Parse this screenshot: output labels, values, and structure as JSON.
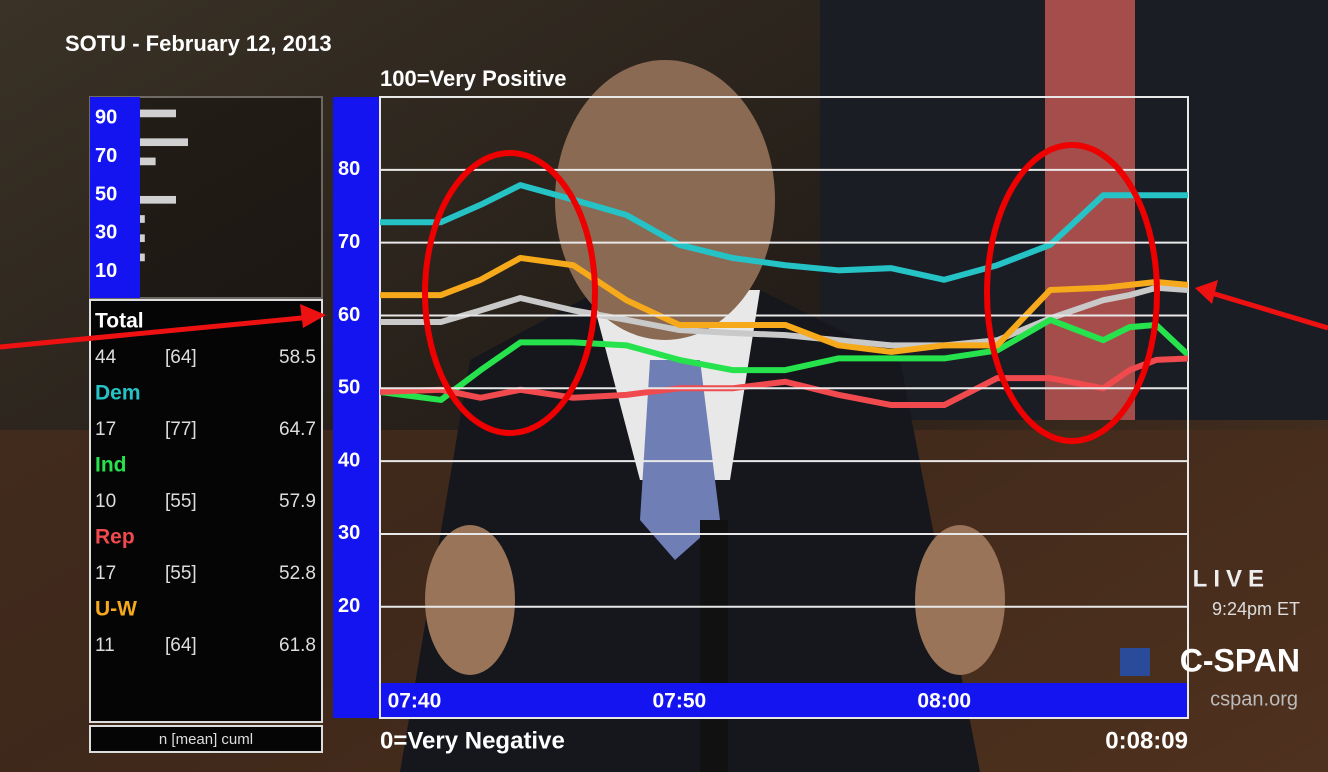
{
  "chart_data": [
    {
      "type": "line",
      "title": "SOTU - February 12, 2013",
      "top_label": "100=Very Positive",
      "bottom_label": "0=Very Negative",
      "timer": "0:08:09",
      "stats_header": "n [mean] cuml",
      "x": [
        38.7,
        41,
        42.5,
        44,
        46,
        48,
        50,
        52,
        54,
        56,
        58,
        60,
        62,
        64,
        66,
        67,
        68,
        69.2
      ],
      "xlim": [
        38.7,
        69.2
      ],
      "xticks": [
        {
          "value": 40,
          "label": "07:40"
        },
        {
          "value": 50,
          "label": "07:50"
        },
        {
          "value": 60,
          "label": "08:00"
        }
      ],
      "ylim": [
        5,
        90
      ],
      "yticks": [
        20,
        30,
        40,
        50,
        60,
        70,
        80
      ],
      "grid": true,
      "series": [
        {
          "name": "Total",
          "color": "#c9c9c9",
          "n": 44,
          "mean": "[64]",
          "cuml": 58.5,
          "values": [
            59.1,
            59.1,
            60.7,
            62.4,
            60.7,
            59.4,
            58.0,
            57.6,
            57.3,
            56.6,
            55.9,
            55.9,
            56.6,
            59.6,
            62.1,
            62.8,
            63.8,
            63.5
          ]
        },
        {
          "name": "Dem",
          "color": "#25c2c6",
          "n": 17,
          "mean": "[77]",
          "cuml": 64.7,
          "values": [
            72.8,
            72.8,
            75.2,
            77.9,
            75.9,
            73.8,
            69.7,
            67.9,
            66.9,
            66.2,
            66.5,
            64.9,
            66.9,
            69.7,
            76.5,
            76.5,
            76.5,
            76.5
          ]
        },
        {
          "name": "Ind",
          "color": "#26e24c",
          "n": 10,
          "mean": "[55]",
          "cuml": 57.9,
          "values": [
            49.5,
            48.4,
            52.5,
            56.3,
            56.3,
            55.9,
            53.9,
            52.5,
            52.5,
            54.1,
            54.1,
            54.1,
            55.2,
            59.4,
            56.6,
            58.4,
            58.7,
            54.6
          ]
        },
        {
          "name": "Rep",
          "color": "#f04a4e",
          "n": 17,
          "mean": "[55]",
          "cuml": 52.8,
          "values": [
            49.5,
            49.8,
            48.7,
            49.8,
            48.7,
            49.1,
            50.0,
            50.0,
            50.9,
            49.1,
            47.7,
            47.7,
            51.4,
            51.4,
            50.0,
            52.5,
            53.9,
            54.1
          ]
        },
        {
          "name": "U-W",
          "color": "#f6a91a",
          "n": 11,
          "mean": "[64]",
          "cuml": 61.8,
          "values": [
            62.8,
            62.8,
            64.9,
            67.9,
            66.9,
            62.1,
            58.7,
            58.7,
            58.7,
            55.9,
            55.0,
            55.9,
            55.9,
            63.5,
            63.8,
            64.2,
            64.6,
            64.2
          ]
        }
      ]
    },
    {
      "type": "histogram",
      "orientation": "horizontal",
      "bins": [
        0,
        5,
        10,
        15,
        20,
        25,
        30,
        35,
        40,
        45,
        50,
        55,
        60,
        65,
        70,
        75,
        80,
        85,
        90,
        95,
        100
      ],
      "values": [
        0,
        0,
        0,
        0.4,
        0,
        0.4,
        0,
        0.4,
        0,
        3,
        0,
        0,
        0,
        1.3,
        0,
        4,
        0,
        0,
        3,
        0
      ],
      "color": "#d0d0d0",
      "ylim": [
        0,
        100
      ],
      "yticks": [
        10,
        30,
        50,
        70,
        90
      ],
      "xlim": [
        0,
        5
      ]
    }
  ],
  "broadcast": {
    "live": "LIVE",
    "time": "9:24pm ET",
    "network": "C-SPAN",
    "site": "cspan.org"
  }
}
